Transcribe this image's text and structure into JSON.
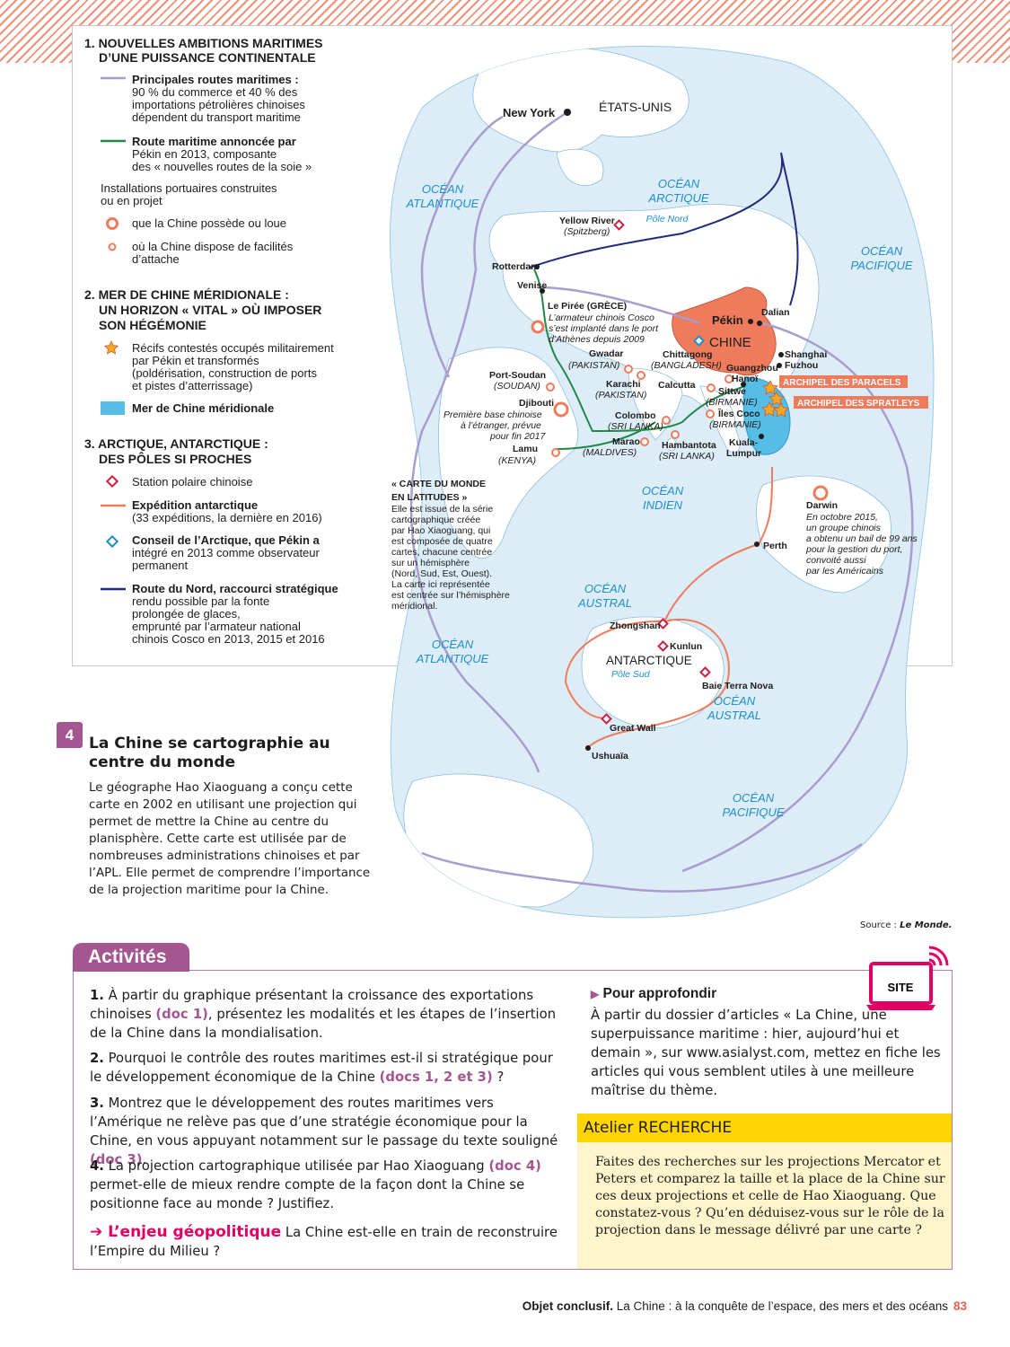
{
  "legend": {
    "s1_title": "1. NOUVELLES AMBITIONS MARITIMES",
    "s1_title2": "D’UNE PUISSANCE CONTINENTALE",
    "routes_bold": "Principales routes maritimes :",
    "routes_l1": "90 % du commerce et 40 % des",
    "routes_l2": "importations pétrolières chinoises",
    "routes_l3": "dépendent du transport maritime",
    "silk_l1": "Route maritime annoncée par",
    "silk_l2": "Pékin en 2013, composante",
    "silk_l3": "des « nouvelles routes de la soie »",
    "ports_l1": "Installations portuaires construites",
    "ports_l2": "ou en projet",
    "owned": "que la Chine possède ou loue",
    "facility_l1": "où la Chine dispose de facilités",
    "facility_l2": "d’attache",
    "s2_title": "2. MER DE CHINE MÉRIDIONALE :",
    "s2_title2": "UN HORIZON « VITAL » OÙ IMPOSER",
    "s2_title3": "SON HÉGÉMONIE",
    "reefs_l1": "Récifs contestés occupés militairement",
    "reefs_l2": "par Pékin et transformés",
    "reefs_l3": "(poldérisation, construction de ports",
    "reefs_l4": "et pistes d’atterrissage)",
    "sea": "Mer de Chine méridionale",
    "s3_title": "3. ARCTIQUE, ANTARCTIQUE :",
    "s3_title2": "DES PÔLES SI PROCHES",
    "station": "Station polaire chinoise",
    "expe_l1": "Expédition antarctique",
    "expe_l2": "(33 expéditions, la dernière en 2016)",
    "arctic_l1": "Conseil de l’Arctique, que Pékin a",
    "arctic_l2": "intégré en 2013 comme observateur",
    "arctic_l3": "permanent",
    "north_l1": "Route du Nord, raccourci stratégique",
    "north_l2": "rendu possible par la fonte",
    "north_l3": "prolongée de glaces,",
    "north_l4": "emprunté par l’armateur national",
    "north_l5": "chinois Cosco en 2013, 2015 et 2016"
  },
  "map_labels": {
    "newyork": "New York",
    "usa": "ÉTATS-UNIS",
    "oc_atl_n1": "OCÉAN",
    "oc_atl_n2": "ATLANTIQUE",
    "oc_arc1": "OCÉAN",
    "oc_arc2": "ARCTIQUE",
    "pole_nord": "Pôle Nord",
    "yellow1": "Yellow River",
    "yellow2": "(Spitzberg)",
    "oc_pac_n1": "OCÉAN",
    "oc_pac_n2": "PACIFIQUE",
    "rotterdam": "Rotterdam",
    "venise": "Venise",
    "piree1": "Le Pirée (GRÈCE)",
    "piree2": "L’armateur chinois Cosco",
    "piree3": "s’est implanté dans le port",
    "piree4": "d’Athènes depuis 2009",
    "pekin": "Pékin",
    "dalian": "Dalian",
    "chine": "CHINE",
    "shanghai": "Shanghai",
    "fuzhou": "Fuzhou",
    "guangzhou": "Guangzhou",
    "hanoi": "Hanoï",
    "paracels": "ARCHIPEL DES PARACELS",
    "spratleys": "ARCHIPEL DES SPRATLEYS",
    "gwadar1": "Gwadar",
    "gwadar2": "(PAKISTAN)",
    "chitta1": "Chittagong",
    "chitta2": "(BANGLADESH)",
    "karachi1": "Karachi",
    "karachi2": "(PAKISTAN)",
    "calcutta": "Calcutta",
    "sittwe1": "Sittwe",
    "sittwe2": "(BIRMANIE)",
    "coco1": "Îles Coco",
    "coco2": "(BIRMANIE)",
    "portsoudan1": "Port-Soudan",
    "portsoudan2": "(SOUDAN)",
    "djibouti1": "Djibouti",
    "djibouti2": "Première base chinoise",
    "djibouti3": "à l’étranger, prévue",
    "djibouti4": "pour fin 2017",
    "colombo1": "Colombo",
    "colombo2": "(SRI LANKA)",
    "marao1": "Marao",
    "marao2": "(MALDIVES)",
    "hamb1": "Hambantota",
    "hamb2": "(SRI LANKA)",
    "lamu1": "Lamu",
    "lamu2": "(KENYA)",
    "kuala1": "Kuala-",
    "kuala2": "Lumpur",
    "oc_ind1": "OCÉAN",
    "oc_ind2": "INDIEN",
    "darwin": "Darwin",
    "darwin2": "En octobre 2015,",
    "darwin3": "un groupe chinois",
    "darwin4": "a obtenu un bail de 99 ans",
    "darwin5": "pour la gestion du port,",
    "darwin6": "convoité aussi",
    "darwin7": "par les Américains",
    "perth": "Perth",
    "carte1": "« CARTE DU MONDE",
    "carte2": "EN LATITUDES »",
    "carte3": "Elle est issue de la série",
    "carte4": "cartographique créée",
    "carte5": "par Hao Xiaoguang, qui",
    "carte6": "est composée de quatre",
    "carte7": "cartes, chacune centrée",
    "carte8": "sur un hémisphère",
    "carte9": "(Nord, Sud, Est, Ouest).",
    "carte10": "La carte ici représentée",
    "carte11": "est centrée sur l’hémisphère",
    "carte12": "méridional.",
    "oc_aus_a1": "OCÉAN",
    "oc_aus_a2": "AUSTRAL",
    "zhongshan": "Zhongshan",
    "kunlun": "Kunlun",
    "antarctique": "ANTARCTIQUE",
    "pole_sud": "Pôle Sud",
    "terranova": "Baie Terra Nova",
    "oc_aus_b1": "OCÉAN",
    "oc_aus_b2": "AUSTRAL",
    "oc_atl_s1": "OCÉAN",
    "oc_atl_s2": "ATLANTIQUE",
    "greatwall": "Great Wall",
    "ushuaia": "Ushuaïa",
    "oc_pac_s1": "OCÉAN",
    "oc_pac_s2": "PACIFIQUE"
  },
  "doc": {
    "number": "4",
    "title": "La Chine se cartographie au centre du monde",
    "body": "Le géographe Hao Xiaoguang a conçu cette carte en 2002 en utilisant une projection qui permet de mettre la Chine au centre du planisphère. Cette carte est utilisée par de nombreuses administrations chinoises et par l’APL. Elle permet de comprendre l’importance de la projection maritime pour la Chine.",
    "source_label": "Source : ",
    "source_name": "Le Monde."
  },
  "activities": {
    "tab": "Activités",
    "q1_n": "1.",
    "q1_a": " À partir du graphique présentant la croissance des exportations chinoises ",
    "q1_ref": "(doc 1)",
    "q1_b": ", présentez les modalités et les étapes de l’insertion de la Chine dans la mondialisation.",
    "q2_n": "2.",
    "q2_a": " Pourquoi le contrôle des routes maritimes est-il si stratégique pour le développement économique de la Chine ",
    "q2_ref": "(docs 1, 2 et 3)",
    "q2_b": " ?",
    "q3_n": "3.",
    "q3_a": " Montrez que le développement des routes maritimes vers l’Amérique ne relève pas que d’une stratégie économique pour la Chine, en vous appuyant notamment sur le passage du texte souligné ",
    "q3_ref": "(doc 3)",
    "q3_b": ".",
    "q4_n": "4.",
    "q4_a": " La projection cartographique utilisée par Hao Xiaoguang ",
    "q4_ref": "(doc 4)",
    "q4_b": " permet-elle de mieux rendre compte de la façon dont la Chine se positionne face au monde ? Justifiez.",
    "enjeu_label": "➔ L’enjeu géopolitique",
    "enjeu_text": " La Chine est-elle en train de reconstruire l’Empire du Milieu ?",
    "approf_title": "Pour approfondir",
    "approf_body": "À partir du dossier d’articles « La Chine, une superpuissance maritime : hier, aujourd’hui et demain », sur www.asialyst.com, mettez en fiche les articles qui vous semblent utiles à une meilleure maîtrise du thème.",
    "site": "SITE",
    "atelier_title": "Atelier RECHERCHE",
    "atelier_body": "Faites des recherches sur les projections Mercator et Peters et comparez la taille et la place de la Chine sur ces deux projections et celle de Hao Xiaoguang. Que constatez-vous ? Qu’en déduisez-vous sur le rôle de la projection dans le message délivré par une carte ?"
  },
  "footer": {
    "bold": "Objet conclusif.",
    "text": " La Chine : à la conquête de l’espace, des mers et des océans",
    "page": "83"
  },
  "colors": {
    "ocean": "#dcedf8",
    "land": "#ffffff",
    "china": "#ee7b5c",
    "scs": "#55bde6",
    "main_route": "#a89dcc",
    "silk_route": "#22884a",
    "north_route": "#1f2b7c",
    "expedition": "#ee7b5c",
    "station": "#d0203d",
    "accent": "#a3568f",
    "ocean_text": "#1e8ec9"
  }
}
